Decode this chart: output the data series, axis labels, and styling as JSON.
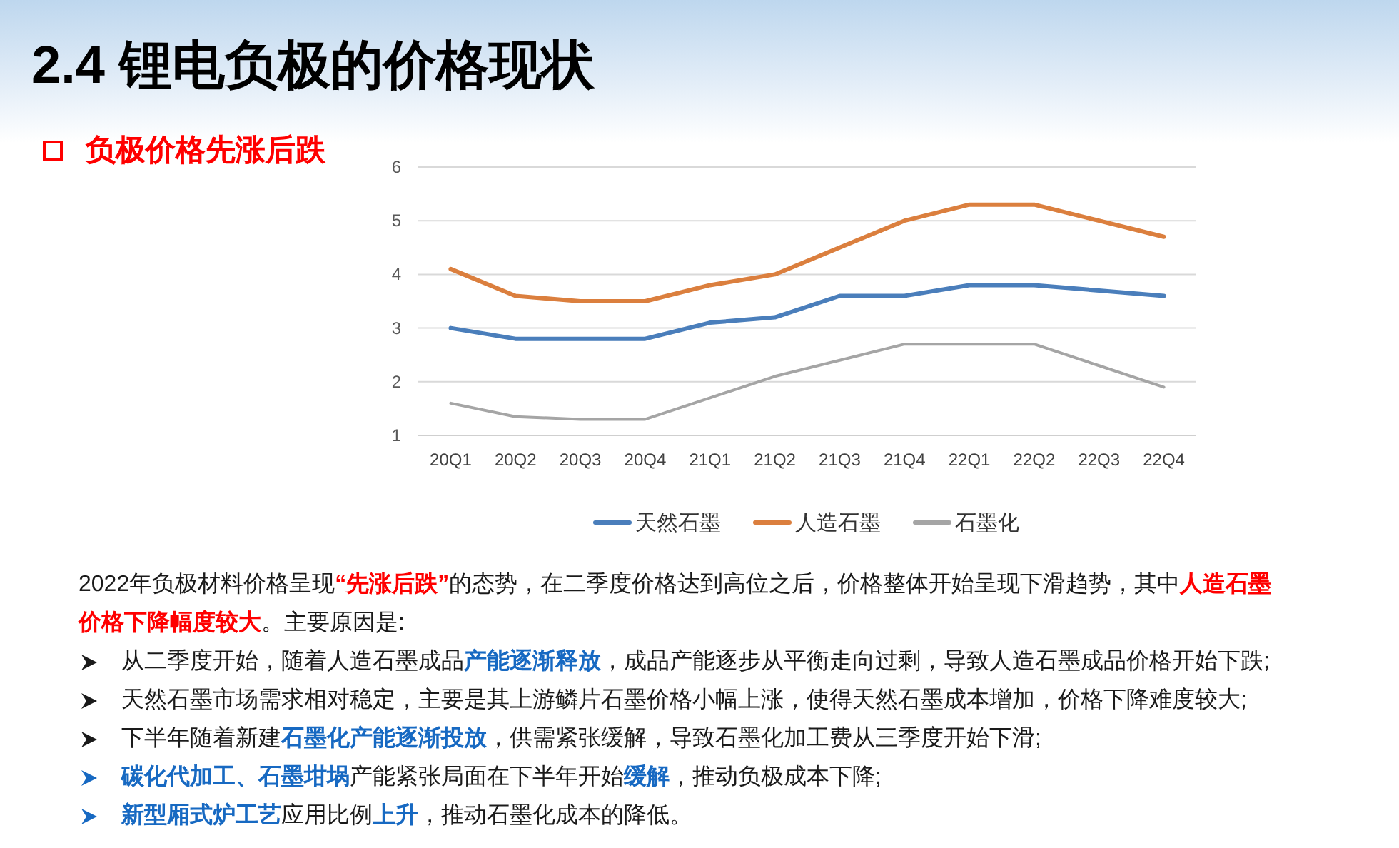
{
  "chart_data": {
    "type": "line",
    "title": "2.4 锂电负极的价格现状",
    "subtitle": "负极价格先涨后跌",
    "categories": [
      "20Q1",
      "20Q2",
      "20Q3",
      "20Q4",
      "21Q1",
      "21Q2",
      "21Q3",
      "21Q4",
      "22Q1",
      "22Q2",
      "22Q3",
      "22Q4"
    ],
    "series": [
      {
        "name": "天然石墨",
        "color": "#4a7ebb",
        "values": [
          3.0,
          2.8,
          2.8,
          2.8,
          3.1,
          3.2,
          3.6,
          3.6,
          3.8,
          3.8,
          3.7,
          3.6
        ]
      },
      {
        "name": "人造石墨",
        "color": "#db7f3e",
        "values": [
          4.1,
          3.6,
          3.5,
          3.5,
          3.8,
          4.0,
          4.5,
          5.0,
          5.3,
          5.3,
          5.0,
          4.7
        ]
      },
      {
        "name": "石墨化",
        "color": "#a5a5a5",
        "values": [
          1.6,
          1.35,
          1.3,
          1.3,
          1.7,
          2.1,
          2.4,
          2.7,
          2.7,
          2.7,
          2.3,
          1.9
        ]
      }
    ],
    "ylim": [
      1,
      6
    ],
    "yticks": [
      1,
      2,
      3,
      4,
      5,
      6
    ],
    "grid": "y",
    "legend": "bottom",
    "line_style": "solid",
    "annotations": [
      "2022年负极材料价格呈现",
      "“先涨后跌”",
      "的态势，在二季度价格达到高位之后，价格整体开始呈现下滑趋势，其中",
      "人造石墨",
      "价格下降幅度较大",
      "。主要原因是:",
      "从二季度开始，随着人造石墨成品",
      "产能逐渐释放",
      "，成品产能逐步从平衡走向过剩，导致人造石墨成品价格开始下跌;",
      "天然石墨市场需求相对稳定，主要是其上游鳞片石墨价格小幅上涨，使得天然石墨成本增加，价格下降难度较大;",
      "下半年随着新建",
      "石墨化产能逐渐投放",
      "，供需紧张缓解，导致石墨化加工费从三季度开始下滑;",
      "碳化代加工、石墨坩埚",
      "产能紧张局面在下半年开始",
      "缓解",
      "，推动负极成本下降;",
      "新型厢式炉工艺",
      "应用比例",
      "上升",
      "，推动石墨化成本的降低。"
    ]
  }
}
